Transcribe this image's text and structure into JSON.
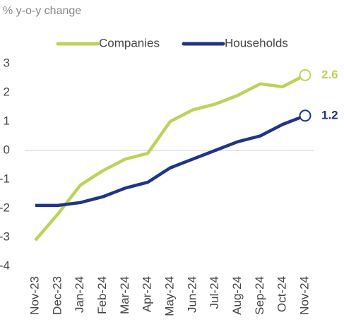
{
  "chart_data": {
    "type": "line",
    "y_label": "% y-o-y change",
    "categories": [
      "Nov-23",
      "Dec-23",
      "Jan-24",
      "Feb-24",
      "Mar-24",
      "Apr-24",
      "May-24",
      "Jun-24",
      "Jul-24",
      "Aug-24",
      "Sep-24",
      "Oct-24",
      "Nov-24"
    ],
    "series": [
      {
        "name": "Companies",
        "color": "#bcd35a",
        "values": [
          -3.1,
          -2.2,
          -1.2,
          -0.7,
          -0.3,
          -0.1,
          1.0,
          1.4,
          1.6,
          1.9,
          2.3,
          2.2,
          2.6
        ]
      },
      {
        "name": "Households",
        "color": "#1f3585",
        "values": [
          -1.9,
          -1.9,
          -1.8,
          -1.6,
          -1.3,
          -1.1,
          -0.6,
          -0.3,
          0.0,
          0.3,
          0.5,
          0.9,
          1.2
        ]
      }
    ],
    "ylim": [
      -4,
      3
    ],
    "yticks": [
      -4,
      -3,
      -2,
      -1,
      0,
      1,
      2,
      3
    ],
    "grid": false,
    "legend": "top"
  }
}
